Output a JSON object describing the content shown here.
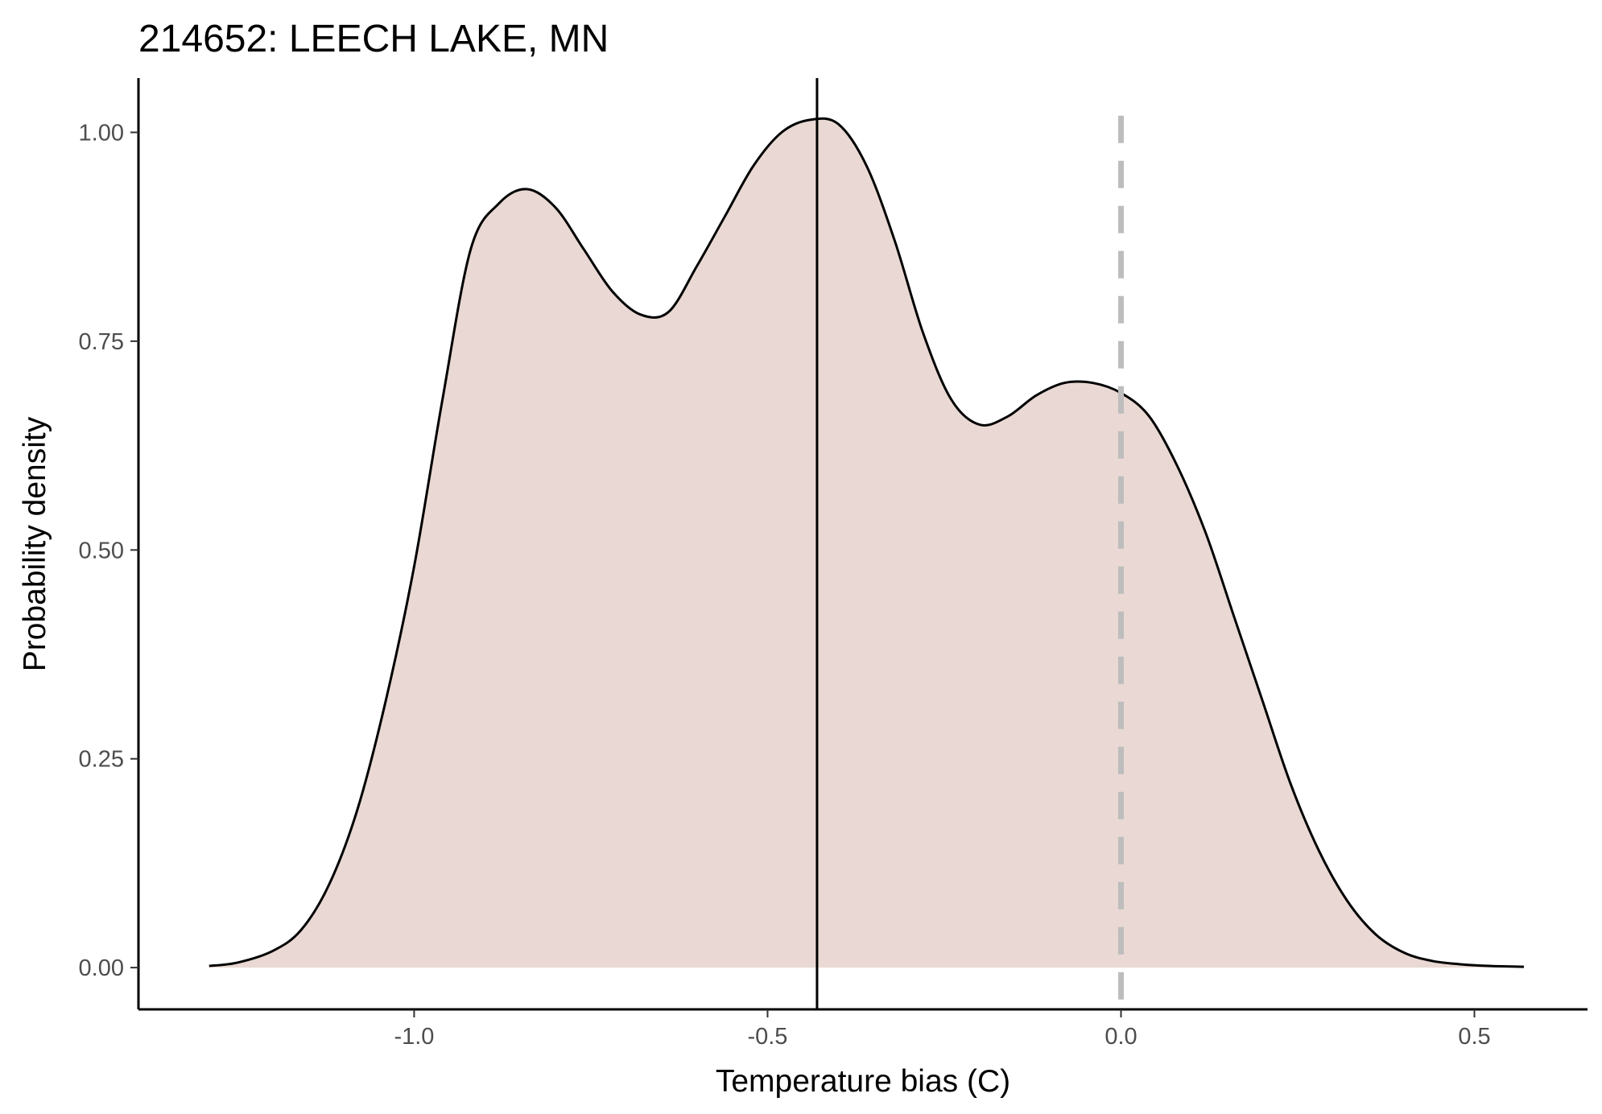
{
  "chart_data": {
    "type": "area",
    "title": "214652: LEECH LAKE, MN",
    "xlabel": "Temperature bias (C)",
    "ylabel": "Probability density",
    "xlim": [
      -1.39,
      0.66
    ],
    "ylim": [
      -0.05,
      1.065
    ],
    "x_ticks": [
      -1.0,
      -0.5,
      0.0,
      0.5
    ],
    "x_tick_labels": [
      "-1.0",
      "-0.5",
      "0.0",
      "0.5"
    ],
    "y_ticks": [
      0.0,
      0.25,
      0.5,
      0.75,
      1.0
    ],
    "y_tick_labels": [
      "0.00",
      "0.25",
      "0.50",
      "0.75",
      "1.00"
    ],
    "grid": false,
    "legend": "none",
    "series": [
      {
        "x": [
          -1.29,
          -1.25,
          -1.2,
          -1.16,
          -1.12,
          -1.08,
          -1.04,
          -1.0,
          -0.96,
          -0.92,
          -0.88,
          -0.84,
          -0.8,
          -0.76,
          -0.72,
          -0.68,
          -0.64,
          -0.6,
          -0.56,
          -0.52,
          -0.48,
          -0.44,
          -0.4,
          -0.36,
          -0.32,
          -0.28,
          -0.24,
          -0.2,
          -0.16,
          -0.12,
          -0.08,
          -0.04,
          0.0,
          0.04,
          0.08,
          0.12,
          0.16,
          0.2,
          0.24,
          0.28,
          0.32,
          0.36,
          0.4,
          0.44,
          0.48,
          0.52,
          0.57
        ],
        "y": [
          0.002,
          0.006,
          0.02,
          0.045,
          0.1,
          0.19,
          0.32,
          0.48,
          0.68,
          0.86,
          0.915,
          0.932,
          0.91,
          0.86,
          0.81,
          0.782,
          0.785,
          0.84,
          0.9,
          0.96,
          1.0,
          1.015,
          1.01,
          0.96,
          0.87,
          0.76,
          0.68,
          0.65,
          0.66,
          0.685,
          0.7,
          0.7,
          0.688,
          0.66,
          0.6,
          0.52,
          0.42,
          0.32,
          0.22,
          0.14,
          0.08,
          0.04,
          0.018,
          0.008,
          0.004,
          0.002,
          0.001
        ],
        "fill": "#e9d8d3",
        "stroke": "#000000"
      }
    ],
    "vlines": [
      {
        "x": -0.43,
        "style": "solid",
        "color": "#000000"
      },
      {
        "x": 0.0,
        "style": "dashed",
        "color": "#bdbdbd"
      }
    ]
  }
}
